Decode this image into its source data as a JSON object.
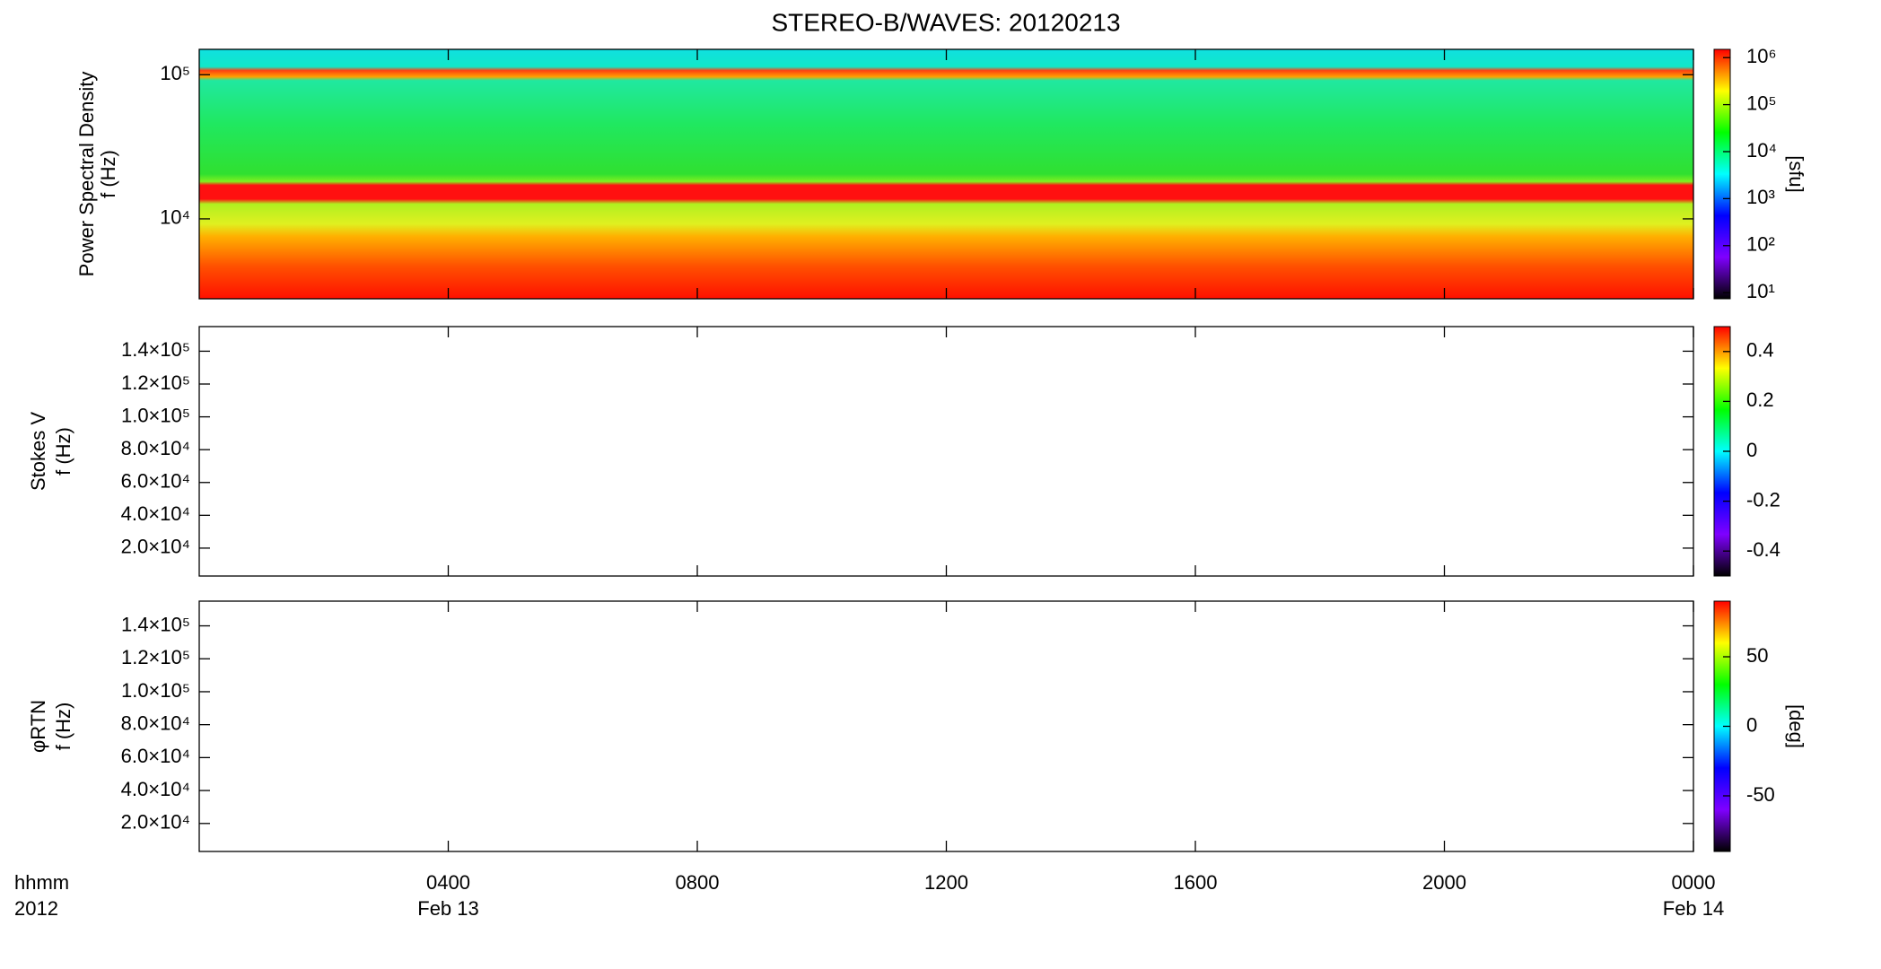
{
  "chart_data": [
    {
      "type": "spectrogram",
      "title": "STEREO-B/WAVES: 20120213",
      "ylabel": [
        "Power Spectral Density",
        "f (Hz)"
      ],
      "yscale": "log",
      "ylim": [
        2790,
        150000
      ],
      "yticks": [
        {
          "value": 10000,
          "label": "10⁴"
        },
        {
          "value": 100000,
          "label": "10⁵"
        }
      ],
      "colorbar": {
        "scale": "log",
        "clim": [
          7.4,
          1500000
        ],
        "ticks": [
          {
            "value": 10,
            "label": "10¹"
          },
          {
            "value": 100,
            "label": "10²"
          },
          {
            "value": 1000,
            "label": "10³"
          },
          {
            "value": 10000,
            "label": "10⁴"
          },
          {
            "value": 100000,
            "label": "10⁵"
          },
          {
            "value": 1000000,
            "label": "10⁶"
          }
        ],
        "label": "[sfu]"
      },
      "colormap": [
        "#000000",
        "#7f00ff",
        "#0000ff",
        "#00ffff",
        "#00ff00",
        "#ffff00",
        "#ff0000"
      ]
    },
    {
      "type": "spectrogram",
      "ylabel": [
        "Stokes V",
        "f (Hz)"
      ],
      "yscale": "linear",
      "ylim": [
        3000,
        155000
      ],
      "yticks": [
        {
          "value": 20000,
          "label": "2.0×10⁴"
        },
        {
          "value": 40000,
          "label": "4.0×10⁴"
        },
        {
          "value": 60000,
          "label": "6.0×10⁴"
        },
        {
          "value": 80000,
          "label": "8.0×10⁴"
        },
        {
          "value": 100000,
          "label": "1.0×10⁵"
        },
        {
          "value": 120000,
          "label": "1.2×10⁵"
        },
        {
          "value": 140000,
          "label": "1.4×10⁵"
        }
      ],
      "colorbar": {
        "scale": "linear",
        "clim": [
          -0.5,
          0.5
        ],
        "ticks": [
          -0.4,
          -0.2,
          0.0,
          0.2,
          0.4
        ]
      }
    },
    {
      "type": "spectrogram",
      "ylabel": [
        "φRTN",
        "f (Hz)"
      ],
      "yscale": "linear",
      "ylim": [
        3000,
        155000
      ],
      "yticks": [
        {
          "value": 20000,
          "label": "2.0×10⁴"
        },
        {
          "value": 40000,
          "label": "4.0×10⁴"
        },
        {
          "value": 60000,
          "label": "6.0×10⁴"
        },
        {
          "value": 80000,
          "label": "8.0×10⁴"
        },
        {
          "value": 100000,
          "label": "1.0×10⁵"
        },
        {
          "value": 120000,
          "label": "1.2×10⁵"
        },
        {
          "value": 140000,
          "label": "1.4×10⁵"
        }
      ],
      "colorbar": {
        "scale": "linear",
        "clim": [
          -90,
          90
        ],
        "ticks": [
          -50,
          0,
          50
        ],
        "label": "[deg]"
      },
      "xlabel": [
        "hhmm",
        "2012"
      ],
      "xlim": [
        0,
        24
      ],
      "xticks": [
        {
          "value": 4,
          "label": "0400"
        },
        {
          "value": 8,
          "label": "0800"
        },
        {
          "value": 12,
          "label": "1200"
        },
        {
          "value": 16,
          "label": "1600"
        },
        {
          "value": 20,
          "label": "2000"
        },
        {
          "value": 24,
          "label": "0000"
        }
      ],
      "date_labels": [
        {
          "value": 4,
          "label": "Feb 13"
        },
        {
          "value": 24,
          "label": "Feb 14"
        }
      ]
    }
  ]
}
